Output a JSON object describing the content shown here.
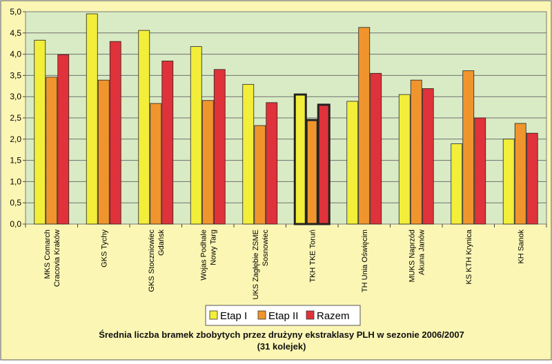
{
  "chart_data": {
    "type": "bar",
    "title": "Średnia liczba bramek zbobytych przez drużyny ekstraklasy PLH w sezonie 2006/2007",
    "subtitle": "(31 kolejek)",
    "categories": [
      [
        "MKS Comarch",
        "Cracovia Kraków"
      ],
      [
        "GKS Tychy"
      ],
      [
        "GKS Stoczniowiec",
        "Gdańsk"
      ],
      [
        "Wojas Podhale",
        "Nowy Targ"
      ],
      [
        "UKS Zagłębie ZSME",
        "Sosnowiec"
      ],
      [
        "TKH TKE Toruń"
      ],
      [
        "TH Unia Oświęcim"
      ],
      [
        "MUKS Naprzód",
        "Akuna Janów"
      ],
      [
        "KS KTH Krynica"
      ],
      [
        "KH Sanok"
      ]
    ],
    "series": [
      {
        "name": "Etap I",
        "color": "#f2ee3a",
        "values": [
          4.33,
          4.95,
          4.56,
          4.18,
          3.29,
          3.05,
          2.89,
          3.05,
          1.89,
          2.0
        ]
      },
      {
        "name": "Etap II",
        "color": "#f0952d",
        "values": [
          3.46,
          3.39,
          2.84,
          2.91,
          2.32,
          2.45,
          4.63,
          3.39,
          3.61,
          2.37
        ]
      },
      {
        "name": "Razem",
        "color": "#e0323a",
        "values": [
          3.99,
          4.3,
          3.84,
          3.64,
          2.86,
          2.81,
          3.55,
          3.19,
          2.5,
          2.14
        ]
      }
    ],
    "highlighted_category": "TKH TKE Toruń",
    "ylim": [
      0,
      5
    ],
    "yticks": [
      "0,0",
      "0,5",
      "1,0",
      "1,5",
      "2,0",
      "2,5",
      "3,0",
      "3,5",
      "4,0",
      "4,5",
      "5,0"
    ],
    "grid": true,
    "legend_position": "bottom",
    "plot_background": "#d9ebc4",
    "outer_background": "#fbf6b4"
  }
}
